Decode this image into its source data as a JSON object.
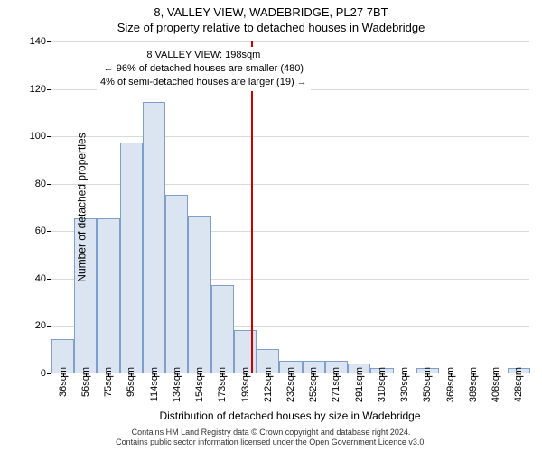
{
  "titles": {
    "main": "8, VALLEY VIEW, WADEBRIDGE, PL27 7BT",
    "sub": "Size of property relative to detached houses in Wadebridge"
  },
  "chart": {
    "type": "histogram",
    "ylim": [
      0,
      140
    ],
    "ytick_step": 20,
    "yticks": [
      0,
      20,
      40,
      60,
      80,
      100,
      120,
      140
    ],
    "grid_color": "#d9d9d9",
    "background_color": "#ffffff",
    "bar_fill": "#dbe5f1",
    "bar_stroke": "#7f9ec9",
    "vline_color": "#cc0000",
    "vline_x": 198,
    "x_bins": [
      {
        "label": "36sqm",
        "value": 14
      },
      {
        "label": "56sqm",
        "value": 65
      },
      {
        "label": "75sqm",
        "value": 65
      },
      {
        "label": "95sqm",
        "value": 97
      },
      {
        "label": "114sqm",
        "value": 114
      },
      {
        "label": "134sqm",
        "value": 75
      },
      {
        "label": "154sqm",
        "value": 66
      },
      {
        "label": "173sqm",
        "value": 37
      },
      {
        "label": "193sqm",
        "value": 18
      },
      {
        "label": "212sqm",
        "value": 10
      },
      {
        "label": "232sqm",
        "value": 5
      },
      {
        "label": "252sqm",
        "value": 5
      },
      {
        "label": "271sqm",
        "value": 5
      },
      {
        "label": "291sqm",
        "value": 4
      },
      {
        "label": "310sqm",
        "value": 2
      },
      {
        "label": "330sqm",
        "value": 0
      },
      {
        "label": "350sqm",
        "value": 2
      },
      {
        "label": "369sqm",
        "value": 0
      },
      {
        "label": "389sqm",
        "value": 0
      },
      {
        "label": "408sqm",
        "value": 0
      },
      {
        "label": "428sqm",
        "value": 2
      }
    ],
    "annotation": {
      "line1": "8 VALLEY VIEW: 198sqm",
      "line2": "← 96% of detached houses are smaller (480)",
      "line3": "4% of semi-detached houses are larger (19) →"
    },
    "ylabel": "Number of detached properties",
    "xlabel": "Distribution of detached houses by size in Wadebridge",
    "label_fontsize": 12,
    "tick_fontsize": 11
  },
  "footer": {
    "line1": "Contains HM Land Registry data © Crown copyright and database right 2024.",
    "line2": "Contains public sector information licensed under the Open Government Licence v3.0."
  }
}
